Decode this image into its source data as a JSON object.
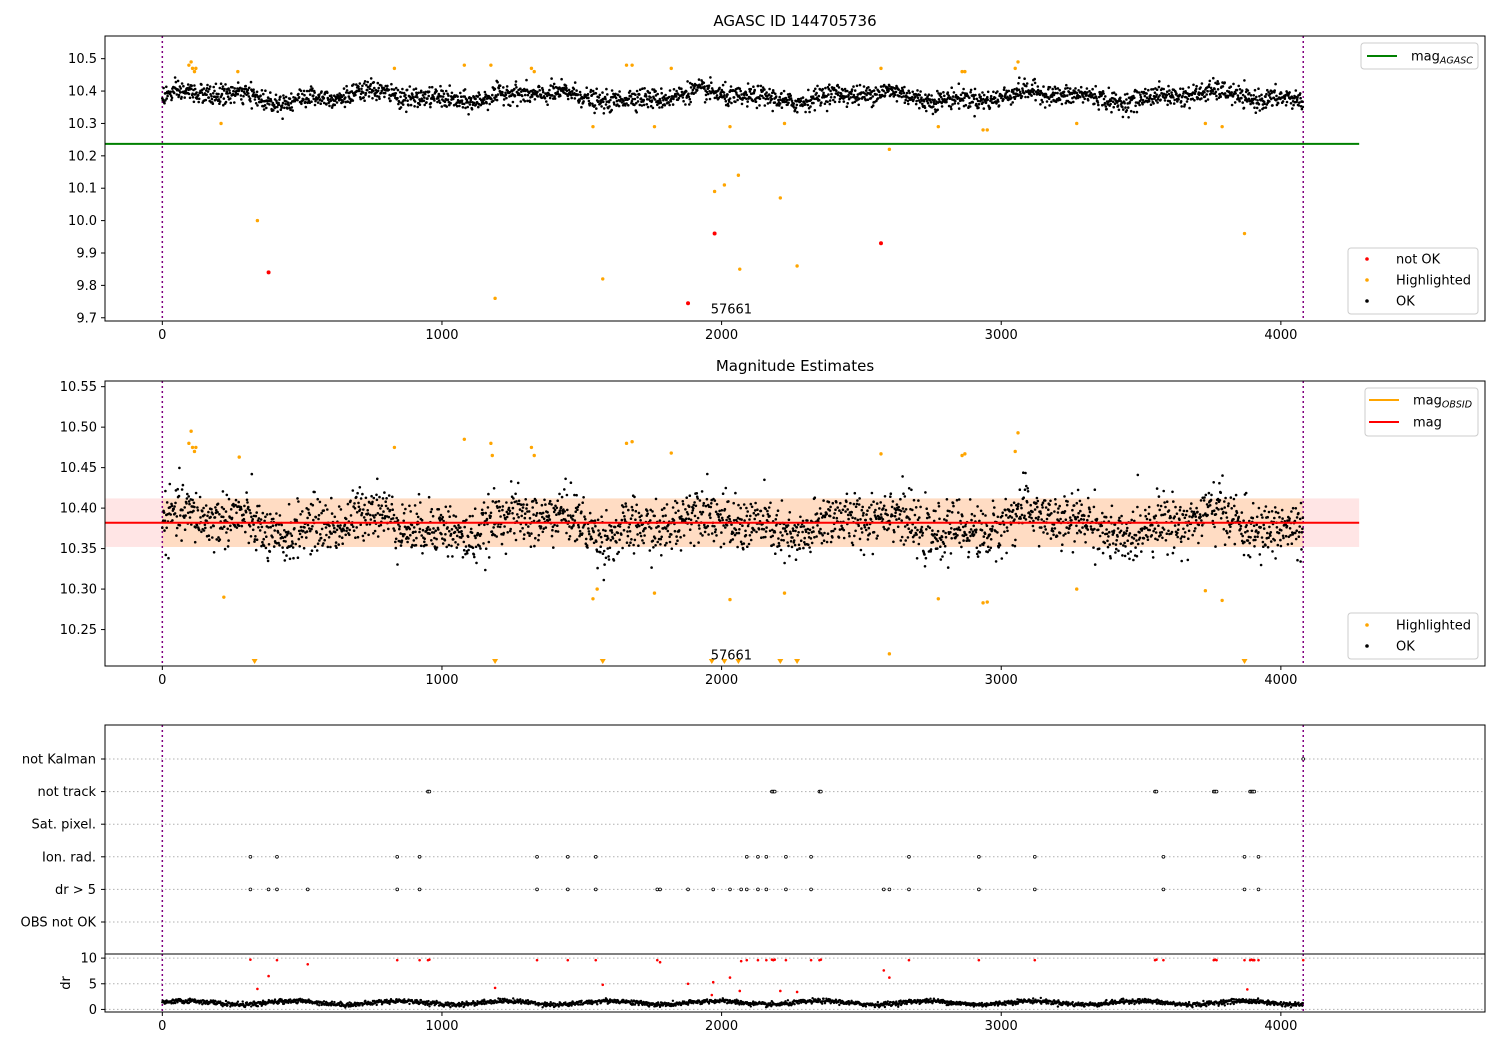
{
  "chart_data": [
    {
      "type": "scatter",
      "title": "AGASC ID 144705736",
      "xlabel": "",
      "ylabel": "",
      "xlim": [
        -205,
        4730
      ],
      "ylim": [
        9.69,
        10.57
      ],
      "x_ticks": [
        "0",
        "1000",
        "2000",
        "3000",
        "4000"
      ],
      "y_ticks": [
        "9.7",
        "9.8",
        "9.9",
        "10.0",
        "10.1",
        "10.2",
        "10.3",
        "10.4",
        "10.5"
      ],
      "grid": false,
      "legend_top": {
        "position": "top-right",
        "entries": [
          {
            "label": "mag",
            "sub": "AGASC",
            "color": "#008000",
            "kind": "line"
          }
        ]
      },
      "legend_bottom": {
        "position": "bottom-right",
        "entries": [
          {
            "label": "not OK",
            "color": "#ff0000",
            "kind": "dot"
          },
          {
            "label": "Highlighted",
            "color": "#ffa500",
            "kind": "dot"
          },
          {
            "label": "OK",
            "color": "#000000",
            "kind": "dot"
          }
        ]
      },
      "reference_line": {
        "y": 10.237,
        "x_range": [
          -205,
          4280
        ],
        "color": "#008000"
      },
      "vlines": [
        0,
        4080
      ],
      "annotation": {
        "text": "57661",
        "x": 2035,
        "y": 9.725
      },
      "ok_band": {
        "x_range": [
          0,
          4080
        ],
        "center": 10.383,
        "spread": 0.028
      },
      "highlighted_points": [
        [
          95,
          10.48
        ],
        [
          103,
          10.49
        ],
        [
          108,
          10.47
        ],
        [
          115,
          10.46
        ],
        [
          120,
          10.47
        ],
        [
          210,
          10.3
        ],
        [
          270,
          10.46
        ],
        [
          340,
          10.0
        ],
        [
          830,
          10.47
        ],
        [
          1080,
          10.48
        ],
        [
          1175,
          10.48
        ],
        [
          1190,
          9.76
        ],
        [
          1320,
          10.47
        ],
        [
          1330,
          10.46
        ],
        [
          1540,
          10.29
        ],
        [
          1575,
          9.82
        ],
        [
          1660,
          10.48
        ],
        [
          1680,
          10.48
        ],
        [
          1760,
          10.29
        ],
        [
          1820,
          10.47
        ],
        [
          1975,
          10.09
        ],
        [
          2010,
          10.11
        ],
        [
          2030,
          10.29
        ],
        [
          2060,
          10.14
        ],
        [
          2065,
          9.85
        ],
        [
          2210,
          10.07
        ],
        [
          2225,
          10.3
        ],
        [
          2270,
          9.86
        ],
        [
          2570,
          10.47
        ],
        [
          2600,
          10.22
        ],
        [
          2775,
          10.29
        ],
        [
          2860,
          10.46
        ],
        [
          2870,
          10.46
        ],
        [
          2935,
          10.28
        ],
        [
          2950,
          10.28
        ],
        [
          3050,
          10.47
        ],
        [
          3060,
          10.49
        ],
        [
          3270,
          10.3
        ],
        [
          3730,
          10.3
        ],
        [
          3790,
          10.29
        ],
        [
          3870,
          9.96
        ]
      ],
      "not_ok_points": [
        [
          380,
          9.84
        ],
        [
          1880,
          9.745
        ],
        [
          1975,
          9.96
        ],
        [
          2570,
          9.93
        ]
      ]
    },
    {
      "type": "scatter",
      "title": "Magnitude Estimates",
      "xlabel": "",
      "ylabel": "",
      "xlim": [
        -205,
        4730
      ],
      "ylim": [
        10.205,
        10.557
      ],
      "x_ticks": [
        "0",
        "1000",
        "2000",
        "3000",
        "4000"
      ],
      "y_ticks": [
        "10.25",
        "10.30",
        "10.35",
        "10.40",
        "10.45",
        "10.50",
        "10.55"
      ],
      "grid": false,
      "legend_top": {
        "position": "top-right",
        "entries": [
          {
            "label": "mag",
            "sub": "OBSID",
            "color": "#ffa500",
            "kind": "line"
          },
          {
            "label": "mag",
            "sub": "",
            "color": "#ff0000",
            "kind": "line"
          }
        ]
      },
      "legend_bottom": {
        "position": "bottom-right",
        "entries": [
          {
            "label": "Highlighted",
            "color": "#ffa500",
            "kind": "dot"
          },
          {
            "label": "OK",
            "color": "#000000",
            "kind": "dot"
          }
        ]
      },
      "mag_line": {
        "y": 10.382,
        "x_range": [
          -205,
          4280
        ],
        "color": "#ff0000"
      },
      "mag_band": {
        "y_range": [
          10.352,
          10.412
        ],
        "x_range": [
          -205,
          4280
        ]
      },
      "obsid_band": {
        "y_range": [
          10.352,
          10.412
        ],
        "x_range": [
          0,
          4080
        ]
      },
      "vlines": [
        0,
        4080
      ],
      "annotation": {
        "text": "57661",
        "x": 2035,
        "y": 10.218
      },
      "ok_band": {
        "x_range": [
          0,
          4080
        ],
        "center": 10.38,
        "spread": 0.03
      },
      "highlighted_points": [
        [
          95,
          10.48
        ],
        [
          103,
          10.495
        ],
        [
          108,
          10.475
        ],
        [
          115,
          10.47
        ],
        [
          120,
          10.475
        ],
        [
          220,
          10.29
        ],
        [
          275,
          10.463
        ],
        [
          830,
          10.475
        ],
        [
          1080,
          10.485
        ],
        [
          1175,
          10.48
        ],
        [
          1180,
          10.465
        ],
        [
          1320,
          10.475
        ],
        [
          1330,
          10.465
        ],
        [
          1540,
          10.288
        ],
        [
          1555,
          10.3
        ],
        [
          1660,
          10.48
        ],
        [
          1680,
          10.482
        ],
        [
          1760,
          10.295
        ],
        [
          1820,
          10.468
        ],
        [
          2030,
          10.287
        ],
        [
          2225,
          10.295
        ],
        [
          2570,
          10.467
        ],
        [
          2600,
          10.22
        ],
        [
          2775,
          10.288
        ],
        [
          2860,
          10.465
        ],
        [
          2870,
          10.467
        ],
        [
          2935,
          10.283
        ],
        [
          2950,
          10.284
        ],
        [
          3050,
          10.47
        ],
        [
          3060,
          10.493
        ],
        [
          3270,
          10.3
        ],
        [
          3730,
          10.298
        ],
        [
          3790,
          10.286
        ]
      ],
      "lower_markers": [
        330,
        1190,
        1575,
        1965,
        2010,
        2060,
        2210,
        2270,
        3870
      ]
    },
    {
      "type": "scatter",
      "title": "",
      "xlim": [
        -205,
        4730
      ],
      "x_ticks": [
        "0",
        "1000",
        "2000",
        "3000",
        "4000"
      ],
      "flag_categories": [
        "not Kalman",
        "not track",
        "Sat. pixel.",
        "Ion. rad.",
        "dr > 5",
        "OBS not OK"
      ],
      "vlines": [
        0,
        4080
      ],
      "flags": {
        "not Kalman": [
          4080
        ],
        "not track": [
          950,
          955,
          2180,
          2185,
          2190,
          2350,
          2355,
          3550,
          3555,
          3760,
          3765,
          3770,
          3890,
          3895,
          3900,
          3905
        ],
        "Sat. pixel.": [],
        "Ion. rad.": [
          315,
          410,
          840,
          920,
          1340,
          1450,
          1550,
          2090,
          2130,
          2160,
          2230,
          2320,
          2670,
          2920,
          3120,
          3580,
          3870,
          3920
        ],
        "dr > 5": [
          315,
          380,
          410,
          520,
          840,
          920,
          1340,
          1450,
          1550,
          1770,
          1780,
          1880,
          1970,
          2030,
          2070,
          2090,
          2130,
          2160,
          2230,
          2320,
          2580,
          2600,
          2670,
          2920,
          3120,
          3580,
          3870,
          3920
        ],
        "OBS not OK": []
      },
      "dr_panel": {
        "ylabel": "dr",
        "y_ticks": [
          "0",
          "5",
          "10"
        ],
        "ylim": [
          -0.5,
          10.8
        ],
        "ok_x_range": [
          0,
          4080
        ],
        "ok_base": 1.3,
        "ok_spread": 0.45,
        "red_points": [
          [
            315,
            9.7
          ],
          [
            340,
            4
          ],
          [
            380,
            6.5
          ],
          [
            410,
            9.6
          ],
          [
            520,
            8.8
          ],
          [
            840,
            9.6
          ],
          [
            920,
            9.6
          ],
          [
            950,
            9.6
          ],
          [
            955,
            9.7
          ],
          [
            1190,
            4.2
          ],
          [
            1340,
            9.6
          ],
          [
            1450,
            9.6
          ],
          [
            1550,
            9.6
          ],
          [
            1575,
            4.8
          ],
          [
            1770,
            9.6
          ],
          [
            1780,
            9.2
          ],
          [
            1880,
            5
          ],
          [
            1965,
            2.8
          ],
          [
            1970,
            5.3
          ],
          [
            2030,
            6.2
          ],
          [
            2065,
            3.6
          ],
          [
            2070,
            9.4
          ],
          [
            2090,
            9.6
          ],
          [
            2130,
            9.6
          ],
          [
            2160,
            9.6
          ],
          [
            2180,
            9.7
          ],
          [
            2185,
            9.6
          ],
          [
            2190,
            9.7
          ],
          [
            2210,
            3.6
          ],
          [
            2230,
            9.6
          ],
          [
            2270,
            3.4
          ],
          [
            2320,
            9.6
          ],
          [
            2350,
            9.6
          ],
          [
            2355,
            9.7
          ],
          [
            2580,
            7.6
          ],
          [
            2600,
            6.2
          ],
          [
            2670,
            9.6
          ],
          [
            2920,
            9.6
          ],
          [
            3120,
            9.6
          ],
          [
            3550,
            9.6
          ],
          [
            3555,
            9.7
          ],
          [
            3580,
            9.6
          ],
          [
            3760,
            9.6
          ],
          [
            3765,
            9.7
          ],
          [
            3770,
            9.6
          ],
          [
            3870,
            9.6
          ],
          [
            3880,
            3.9
          ],
          [
            3890,
            9.6
          ],
          [
            3895,
            9.7
          ],
          [
            3900,
            9.6
          ],
          [
            3905,
            9.6
          ],
          [
            3920,
            9.6
          ],
          [
            4080,
            9.6
          ]
        ]
      }
    }
  ]
}
